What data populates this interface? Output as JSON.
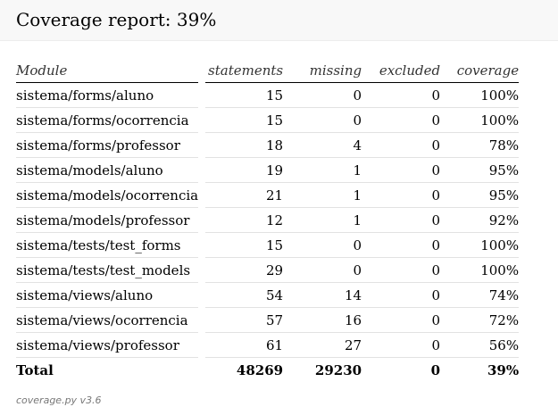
{
  "header": {
    "title": "Coverage report: 39%"
  },
  "table": {
    "columns": {
      "module": "Module",
      "statements": "statements",
      "missing": "missing",
      "excluded": "excluded",
      "coverage": "coverage"
    },
    "rows": [
      {
        "module": "sistema/forms/aluno",
        "statements": "15",
        "missing": "0",
        "excluded": "0",
        "coverage": "100%"
      },
      {
        "module": "sistema/forms/ocorrencia",
        "statements": "15",
        "missing": "0",
        "excluded": "0",
        "coverage": "100%"
      },
      {
        "module": "sistema/forms/professor",
        "statements": "18",
        "missing": "4",
        "excluded": "0",
        "coverage": "78%"
      },
      {
        "module": "sistema/models/aluno",
        "statements": "19",
        "missing": "1",
        "excluded": "0",
        "coverage": "95%"
      },
      {
        "module": "sistema/models/ocorrencia",
        "statements": "21",
        "missing": "1",
        "excluded": "0",
        "coverage": "95%"
      },
      {
        "module": "sistema/models/professor",
        "statements": "12",
        "missing": "1",
        "excluded": "0",
        "coverage": "92%"
      },
      {
        "module": "sistema/tests/test_forms",
        "statements": "15",
        "missing": "0",
        "excluded": "0",
        "coverage": "100%"
      },
      {
        "module": "sistema/tests/test_models",
        "statements": "29",
        "missing": "0",
        "excluded": "0",
        "coverage": "100%"
      },
      {
        "module": "sistema/views/aluno",
        "statements": "54",
        "missing": "14",
        "excluded": "0",
        "coverage": "74%"
      },
      {
        "module": "sistema/views/ocorrencia",
        "statements": "57",
        "missing": "16",
        "excluded": "0",
        "coverage": "72%"
      },
      {
        "module": "sistema/views/professor",
        "statements": "61",
        "missing": "27",
        "excluded": "0",
        "coverage": "56%"
      }
    ],
    "total": {
      "label": "Total",
      "statements": "48269",
      "missing": "29230",
      "excluded": "0",
      "coverage": "39%"
    }
  },
  "footer": {
    "text": "coverage.py v3.6"
  }
}
